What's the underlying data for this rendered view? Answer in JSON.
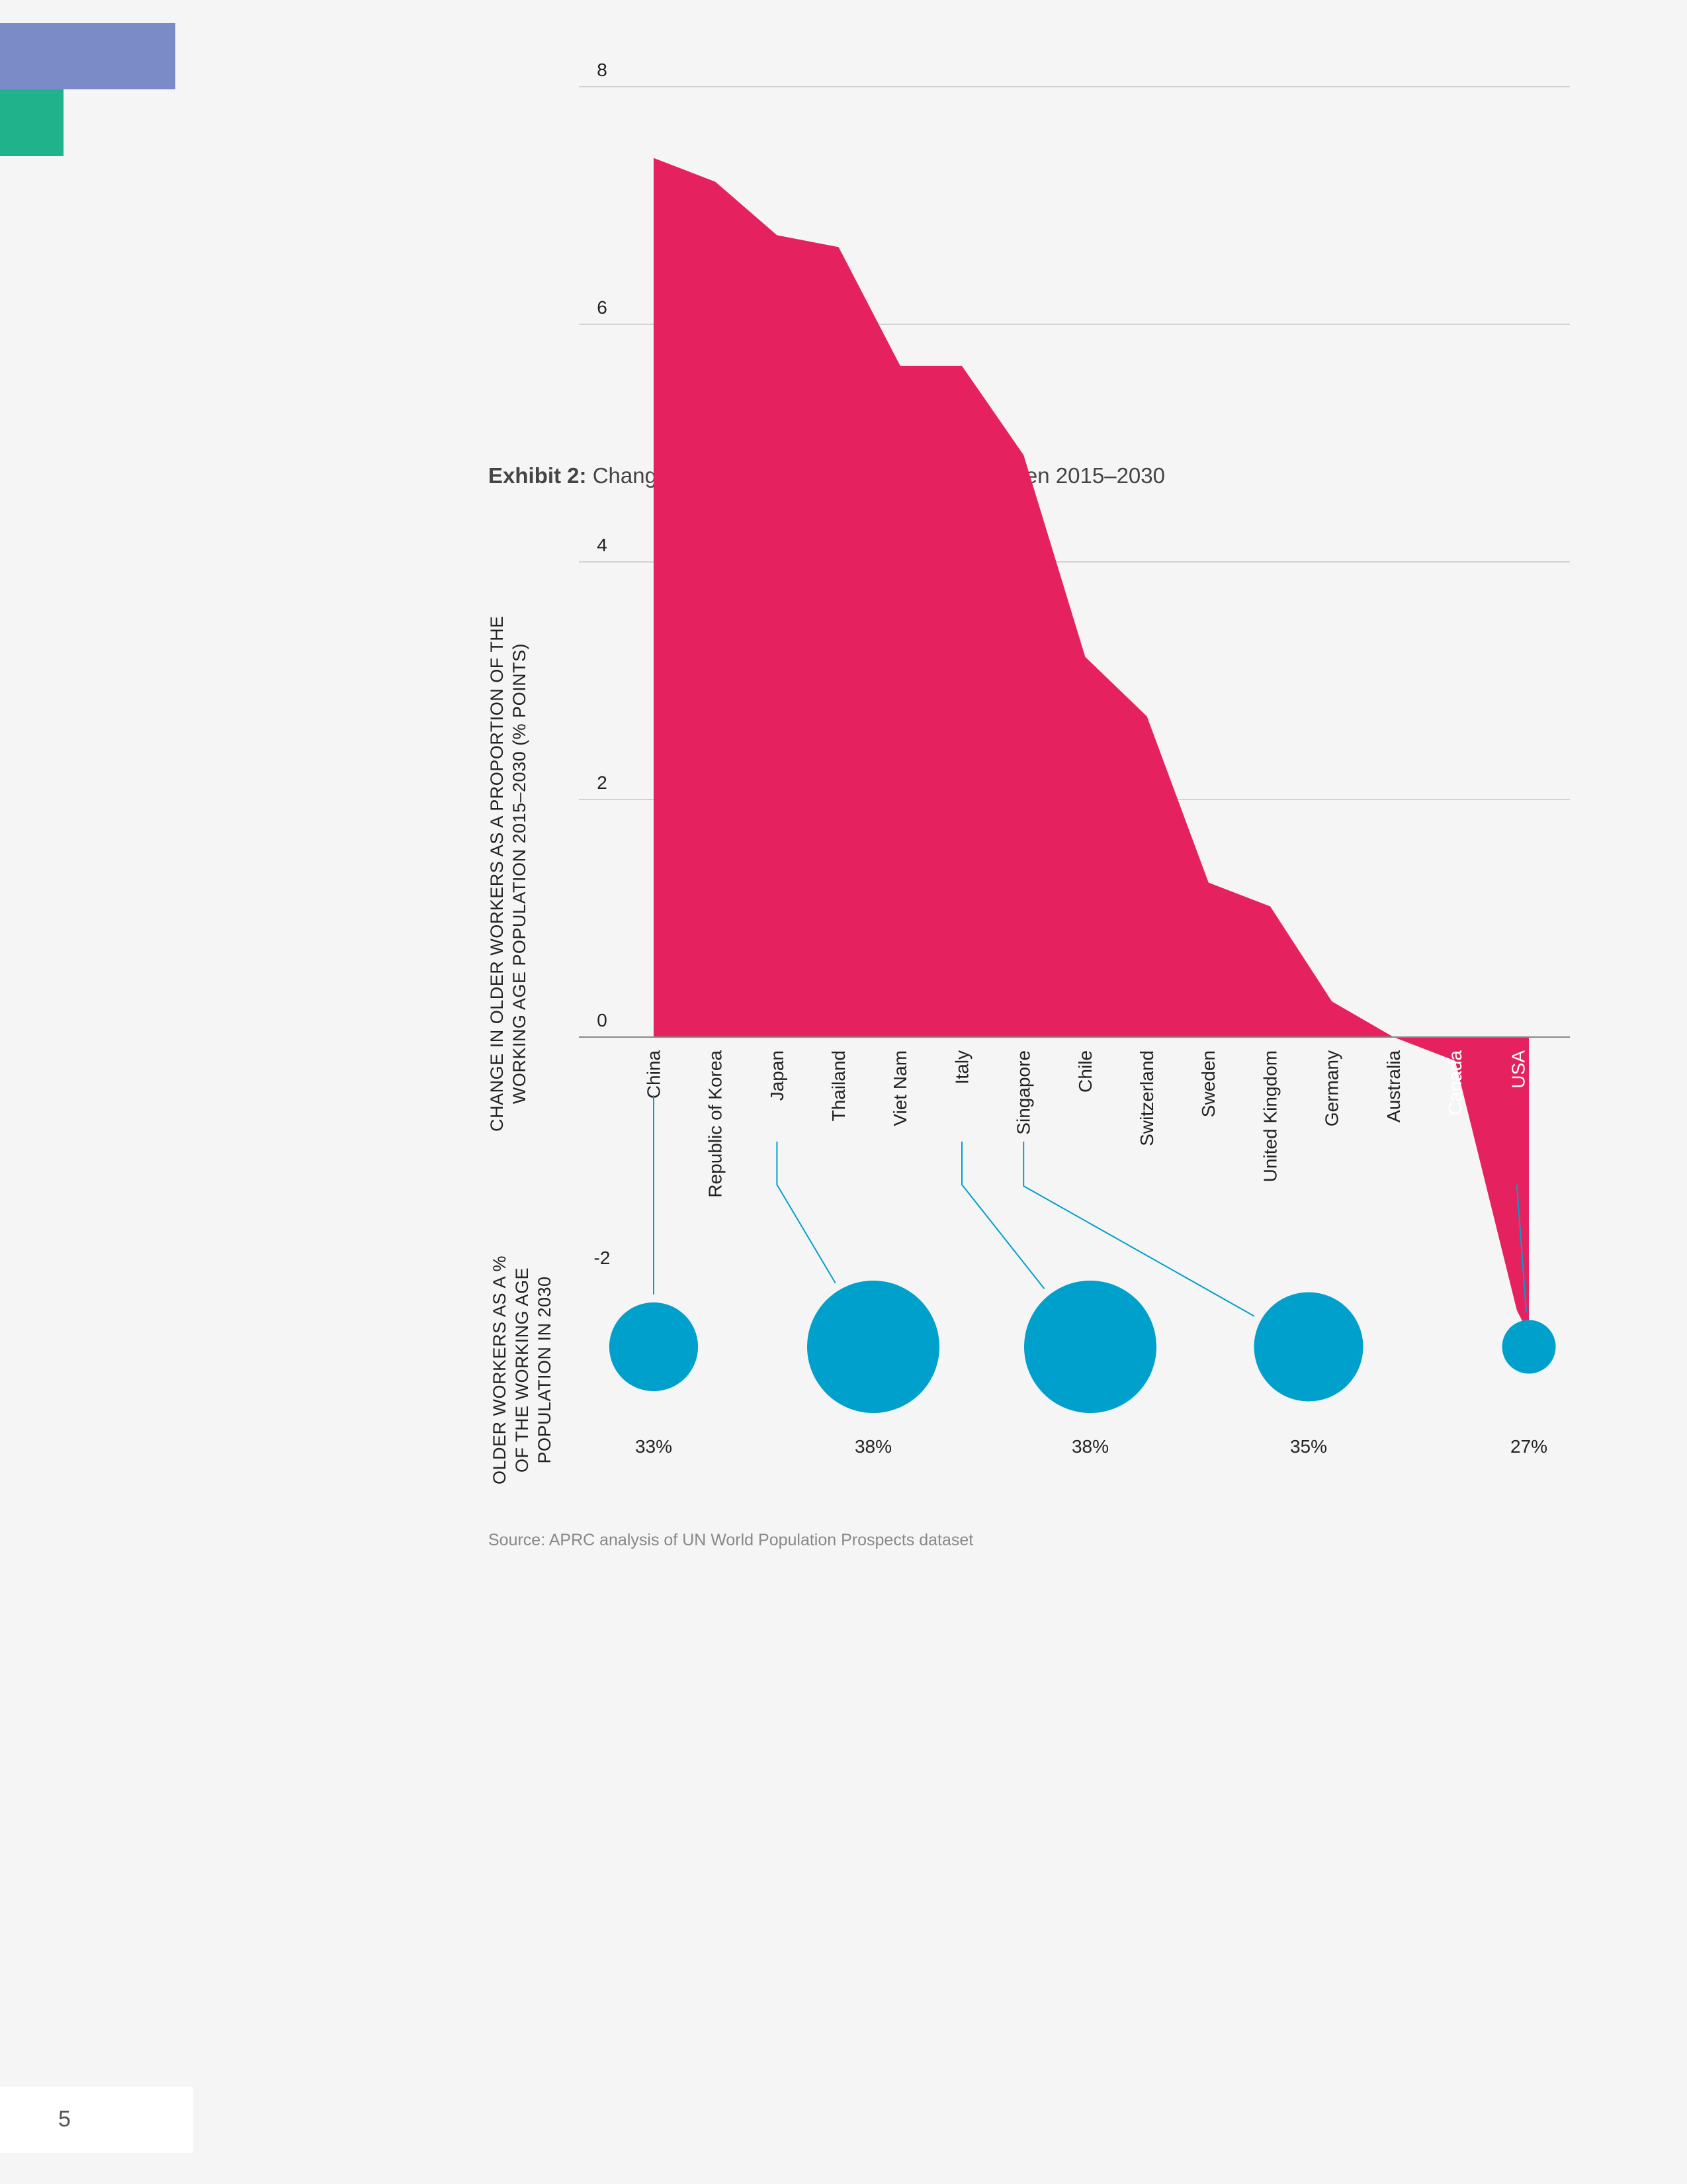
{
  "decor": {
    "blue": "#7b8bc7",
    "green": "#1fb28b"
  },
  "title": {
    "bold": "Exhibit 2:",
    "rest": "Changes in Older Worker Populations Between 2015–2030"
  },
  "source": "Source: APRC analysis of UN World Population Prospects dataset",
  "page_number": "5",
  "chart_data": {
    "type": "area",
    "y_axis_title_lines": [
      "CHANGE IN OLDER WORKERS AS A PROPORTION OF THE",
      "WORKING AGE POPULATION 2015–2030 (% POINTS)"
    ],
    "bubble_axis_title_lines": [
      "OLDER WORKERS AS A %",
      "OF THE WORKING AGE",
      "POPULATION IN 2030"
    ],
    "yticks": [
      8,
      6,
      4,
      2,
      0,
      -2
    ],
    "ylim": [
      -2.5,
      8
    ],
    "grid": true,
    "fill_color": "#e6215f",
    "bubble_color": "#00a0cd",
    "categories": [
      "China",
      "Republic of Korea",
      "Japan",
      "Thailand",
      "Viet Nam",
      "Italy",
      "Singapore",
      "Chile",
      "Switzerland",
      "Sweden",
      "United Kingdom",
      "Germany",
      "Australia",
      "Canada",
      "USA"
    ],
    "values": [
      7.4,
      7.2,
      6.75,
      6.65,
      5.65,
      5.65,
      4.9,
      3.2,
      2.7,
      1.3,
      1.1,
      0.3,
      0.0,
      -0.2,
      -2.3
    ],
    "end_value": -2.5,
    "bubbles": [
      {
        "country": "China",
        "value": 33,
        "label": "33%"
      },
      {
        "country": "Japan",
        "value": 38,
        "label": "38%"
      },
      {
        "country": "Italy",
        "value": 38,
        "label": "38%"
      },
      {
        "country": "Singapore",
        "value": 35,
        "label": "35%"
      },
      {
        "country": "USA",
        "value": 27,
        "label": "27%"
      }
    ]
  }
}
